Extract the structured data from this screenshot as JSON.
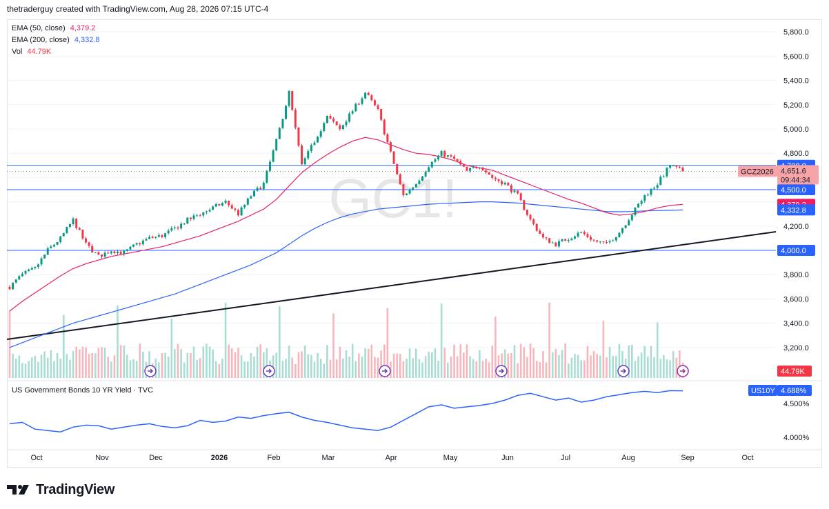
{
  "header": {
    "text": "thetraderguy created with TradingView.com, Aug 28, 2026 07:15 UTC-4"
  },
  "watermark": "GC1!",
  "indicators": {
    "ema50": {
      "label": "EMA (50, close)",
      "value": "4,379.2",
      "color": "#e91e63"
    },
    "ema200": {
      "label": "EMA (200, close)",
      "value": "4,332.8",
      "color": "#2962ff"
    },
    "vol": {
      "label": "Vol",
      "value": "44.79K",
      "color": "#f23645"
    }
  },
  "lower_pane": {
    "title": "US Government Bonds 10 YR Yield · TVC",
    "symbol": "US10Y",
    "value": "4.688%"
  },
  "price_badge": {
    "symbol": "GCZ2026",
    "price": "4,651.6",
    "countdown": "09:44:34"
  },
  "footer": {
    "brand": "TradingView"
  },
  "chart_data": [
    {
      "type": "candlestick",
      "symbol": "GC1!",
      "yaxis_ticks": [
        3200,
        3400,
        3600,
        3800,
        4000,
        4200,
        4400,
        4600,
        4800,
        5000,
        5200,
        5400,
        5600,
        5800
      ],
      "ylim": [
        3100,
        5900
      ],
      "x_ticks": [
        "Oct",
        "Nov",
        "Dec",
        "2026",
        "Feb",
        "Mar",
        "Apr",
        "May",
        "Jun",
        "Jul",
        "Aug",
        "Sep",
        "Oct"
      ],
      "horizontal_lines": [
        4700,
        4500,
        4000
      ],
      "price_labels": [
        {
          "text": "4,700.0",
          "value": 4700,
          "color": "#2962ff"
        },
        {
          "text": "4,500.0",
          "value": 4500,
          "color": "#2962ff"
        },
        {
          "text": "4,379.2",
          "value": 4379.2,
          "color": "#e91e63"
        },
        {
          "text": "4,332.8",
          "value": 4332.8,
          "color": "#2962ff"
        },
        {
          "text": "4,000.0",
          "value": 4000,
          "color": "#2962ff"
        }
      ],
      "last_price": 4651.6,
      "trendline": {
        "from": [
          "Sep",
          3250
        ],
        "to": [
          "Sep",
          4150
        ]
      },
      "closes_weekly": [
        3700,
        3800,
        3850,
        4000,
        4100,
        4250,
        4050,
        3950,
        4000,
        3980,
        4050,
        4100,
        4120,
        4180,
        4250,
        4300,
        4350,
        4400,
        4300,
        4450,
        4550,
        4900,
        5300,
        4700,
        4900,
        5100,
        5000,
        5150,
        5300,
        5150,
        4800,
        4450,
        4550,
        4700,
        4800,
        4750,
        4650,
        4700,
        4600,
        4550,
        4450,
        4250,
        4100,
        4050,
        4100,
        4150,
        4080,
        4050,
        4150,
        4300,
        4450,
        4550,
        4700,
        4651.6
      ],
      "ema50_weekly": [
        3500,
        3580,
        3650,
        3720,
        3790,
        3850,
        3890,
        3920,
        3950,
        3970,
        3990,
        4010,
        4030,
        4060,
        4090,
        4120,
        4160,
        4200,
        4240,
        4290,
        4340,
        4420,
        4530,
        4640,
        4720,
        4790,
        4850,
        4900,
        4930,
        4910,
        4870,
        4830,
        4800,
        4790,
        4770,
        4740,
        4700,
        4680,
        4660,
        4620,
        4580,
        4540,
        4500,
        4460,
        4420,
        4390,
        4350,
        4310,
        4290,
        4300,
        4320,
        4350,
        4370,
        4379.2
      ],
      "ema200_weekly": [
        3200,
        3240,
        3280,
        3320,
        3360,
        3400,
        3430,
        3460,
        3490,
        3520,
        3550,
        3580,
        3610,
        3640,
        3680,
        3720,
        3760,
        3800,
        3840,
        3880,
        3930,
        3980,
        4050,
        4120,
        4180,
        4230,
        4270,
        4300,
        4320,
        4340,
        4350,
        4360,
        4370,
        4380,
        4385,
        4390,
        4395,
        4400,
        4400,
        4395,
        4390,
        4380,
        4370,
        4360,
        4350,
        4340,
        4330,
        4320,
        4318,
        4320,
        4325,
        4328,
        4330,
        4332.8
      ],
      "volume_ticks": [
        "44.79K"
      ]
    },
    {
      "type": "line",
      "series": [
        {
          "name": "US10Y",
          "values": [
            4.2,
            4.22,
            4.12,
            4.1,
            4.08,
            4.15,
            4.18,
            4.17,
            4.12,
            4.15,
            4.18,
            4.2,
            4.16,
            4.14,
            4.17,
            4.25,
            4.22,
            4.24,
            4.3,
            4.28,
            4.32,
            4.35,
            4.37,
            4.3,
            4.25,
            4.22,
            4.18,
            4.14,
            4.12,
            4.1,
            4.15,
            4.25,
            4.35,
            4.45,
            4.48,
            4.43,
            4.45,
            4.47,
            4.5,
            4.55,
            4.62,
            4.65,
            4.6,
            4.55,
            4.58,
            4.52,
            4.55,
            4.6,
            4.63,
            4.66,
            4.68,
            4.66,
            4.69,
            4.688
          ]
        }
      ],
      "yaxis_ticks": [
        "4.000%",
        "4.500%"
      ]
    }
  ]
}
